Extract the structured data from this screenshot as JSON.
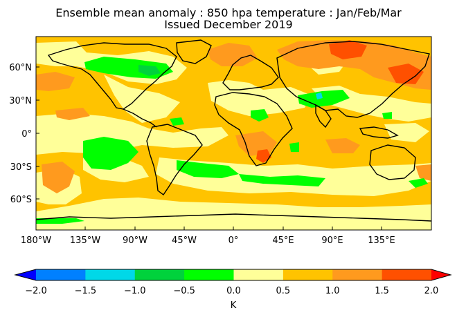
{
  "title": {
    "line1": "Ensemble mean anomaly : 850 hpa temperature : Jan/Feb/Mar",
    "line2": "Issued December 2019"
  },
  "map": {
    "lat_ticks": [
      "60°N",
      "30°N",
      "0°",
      "30°S",
      "60°S"
    ],
    "lon_ticks": [
      "180°W",
      "135°W",
      "90°W",
      "45°W",
      "0°",
      "45°E",
      "90°E",
      "135°E"
    ]
  },
  "colorbar": {
    "unit": "K",
    "ticks": [
      "−2.0",
      "−1.5",
      "−1.0",
      "−0.5",
      "0.0",
      "0.5",
      "1.0",
      "1.5",
      "2.0"
    ],
    "bins": [
      {
        "range": "<-2.0",
        "color": "#0000ff"
      },
      {
        "range": "-2.0 to -1.5",
        "color": "#0080ff"
      },
      {
        "range": "-1.5 to -1.0",
        "color": "#00d8e8"
      },
      {
        "range": "-1.0 to -0.5",
        "color": "#00d23c"
      },
      {
        "range": "-0.5 to 0.0",
        "color": "#00ff00"
      },
      {
        "range": "0.0 to 0.5",
        "color": "#ffff99"
      },
      {
        "range": "0.5 to 1.0",
        "color": "#ffc300"
      },
      {
        "range": "1.0 to 1.5",
        "color": "#ff9a1e"
      },
      {
        "range": "1.5 to 2.0",
        "color": "#ff5000"
      },
      {
        "range": ">2.0",
        "color": "#ff0000"
      }
    ]
  }
}
